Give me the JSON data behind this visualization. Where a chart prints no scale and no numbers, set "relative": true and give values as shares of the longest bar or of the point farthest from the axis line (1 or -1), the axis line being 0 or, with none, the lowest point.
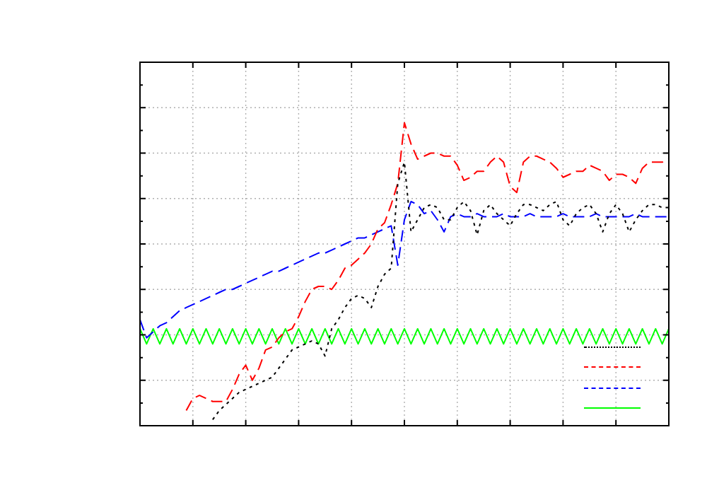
{
  "chart_data": {
    "type": "line",
    "relative": true,
    "grid": true,
    "categories": [
      null,
      null,
      null,
      null,
      null,
      null,
      null,
      null,
      null,
      null,
      null,
      null,
      null,
      null,
      null,
      null,
      null,
      null,
      null,
      null,
      null,
      null,
      null,
      null,
      null,
      null,
      null,
      null,
      null,
      null,
      null,
      null,
      null,
      null,
      null,
      null,
      null,
      null,
      null,
      null,
      null,
      null,
      null,
      null,
      null,
      null,
      null,
      null,
      null,
      null,
      null,
      null,
      null,
      null,
      null,
      null,
      null,
      null,
      null,
      null,
      null,
      null,
      null,
      null,
      null,
      null,
      null,
      null,
      null,
      null,
      null,
      null,
      null,
      null,
      null,
      null,
      null,
      null,
      null,
      null,
      null
    ],
    "series": [
      {
        "color": "#000000",
        "line_style": "dotted",
        "values": [
          null,
          null,
          null,
          null,
          null,
          null,
          null,
          null,
          null,
          null,
          null,
          0.02,
          0.05,
          0.07,
          0.09,
          0.11,
          0.12,
          0.13,
          0.14,
          0.15,
          0.16,
          0.19,
          0.22,
          0.25,
          0.26,
          0.27,
          0.28,
          0.27,
          0.23,
          0.32,
          0.35,
          0.39,
          0.42,
          0.43,
          0.42,
          0.39,
          0.46,
          0.5,
          0.52,
          0.8,
          0.87,
          0.64,
          0.68,
          0.72,
          0.73,
          0.72,
          0.68,
          0.68,
          0.72,
          0.74,
          0.71,
          0.63,
          0.71,
          0.73,
          0.7,
          0.68,
          0.66,
          0.7,
          0.73,
          0.73,
          0.72,
          0.71,
          0.73,
          0.74,
          0.68,
          0.66,
          0.7,
          0.72,
          0.73,
          0.7,
          0.64,
          0.7,
          0.73,
          0.7,
          0.64,
          0.68,
          0.71,
          0.73,
          0.73,
          0.72,
          0.72
        ]
      },
      {
        "color": "#ff0000",
        "line_style": "dashed",
        "values": [
          null,
          null,
          null,
          null,
          null,
          null,
          null,
          0.05,
          0.09,
          0.1,
          0.09,
          0.08,
          0.08,
          0.08,
          0.12,
          0.17,
          0.2,
          0.15,
          0.19,
          0.25,
          0.26,
          0.29,
          0.31,
          0.32,
          0.36,
          0.41,
          0.45,
          0.46,
          0.46,
          0.45,
          0.48,
          0.52,
          0.53,
          0.55,
          0.57,
          0.6,
          0.65,
          0.67,
          0.73,
          0.8,
          1,
          0.93,
          0.88,
          0.89,
          0.9,
          0.9,
          0.89,
          0.89,
          0.86,
          0.81,
          0.82,
          0.84,
          0.84,
          0.87,
          0.89,
          0.87,
          0.79,
          0.77,
          0.87,
          0.89,
          0.89,
          0.88,
          0.87,
          0.85,
          0.82,
          0.83,
          0.84,
          0.84,
          0.86,
          0.85,
          0.84,
          0.81,
          0.83,
          0.83,
          0.82,
          0.8,
          0.85,
          0.87,
          0.87,
          0.87,
          0.88
        ]
      },
      {
        "color": "#0000ff",
        "line_style": "dashed",
        "values": [
          0.35,
          0.29,
          0.31,
          0.33,
          0.34,
          0.36,
          0.38,
          0.39,
          0.4,
          0.41,
          0.42,
          0.43,
          0.44,
          0.45,
          0.45,
          0.46,
          0.47,
          0.48,
          0.49,
          0.5,
          0.51,
          0.51,
          0.52,
          0.53,
          0.54,
          0.55,
          0.56,
          0.57,
          0.57,
          0.58,
          0.59,
          0.6,
          0.61,
          0.62,
          0.62,
          0.63,
          0.64,
          0.65,
          0.66,
          0.53,
          0.68,
          0.74,
          0.73,
          0.7,
          0.71,
          0.68,
          0.64,
          0.69,
          0.7,
          0.69,
          0.69,
          0.7,
          0.69,
          0.69,
          0.69,
          0.7,
          0.69,
          0.69,
          0.69,
          0.7,
          0.69,
          0.69,
          0.69,
          0.69,
          0.7,
          0.69,
          0.69,
          0.69,
          0.69,
          0.7,
          0.69,
          0.69,
          0.69,
          0.69,
          0.69,
          0.7,
          0.69,
          0.69,
          0.69,
          0.69,
          0.69
        ]
      },
      {
        "color": "#00ff00",
        "line_style": "solid",
        "values": [
          0.32,
          0.27,
          0.32,
          0.27,
          0.32,
          0.27,
          0.32,
          0.27,
          0.32,
          0.27,
          0.32,
          0.27,
          0.32,
          0.27,
          0.32,
          0.27,
          0.32,
          0.27,
          0.32,
          0.27,
          0.32,
          0.27,
          0.32,
          0.27,
          0.32,
          0.27,
          0.32,
          0.27,
          0.32,
          0.27,
          0.32,
          0.27,
          0.32,
          0.27,
          0.32,
          0.27,
          0.32,
          0.27,
          0.32,
          0.27,
          0.32,
          0.27,
          0.32,
          0.27,
          0.32,
          0.27,
          0.32,
          0.27,
          0.32,
          0.27,
          0.32,
          0.27,
          0.32,
          0.27,
          0.32,
          0.27,
          0.32,
          0.27,
          0.32,
          0.27,
          0.32,
          0.27,
          0.32,
          0.27,
          0.32,
          0.27,
          0.32,
          0.27,
          0.32,
          0.27,
          0.32,
          0.27,
          0.32,
          0.27,
          0.32,
          0.27,
          0.32,
          0.27,
          0.32,
          0.27,
          0.32
        ]
      }
    ]
  }
}
